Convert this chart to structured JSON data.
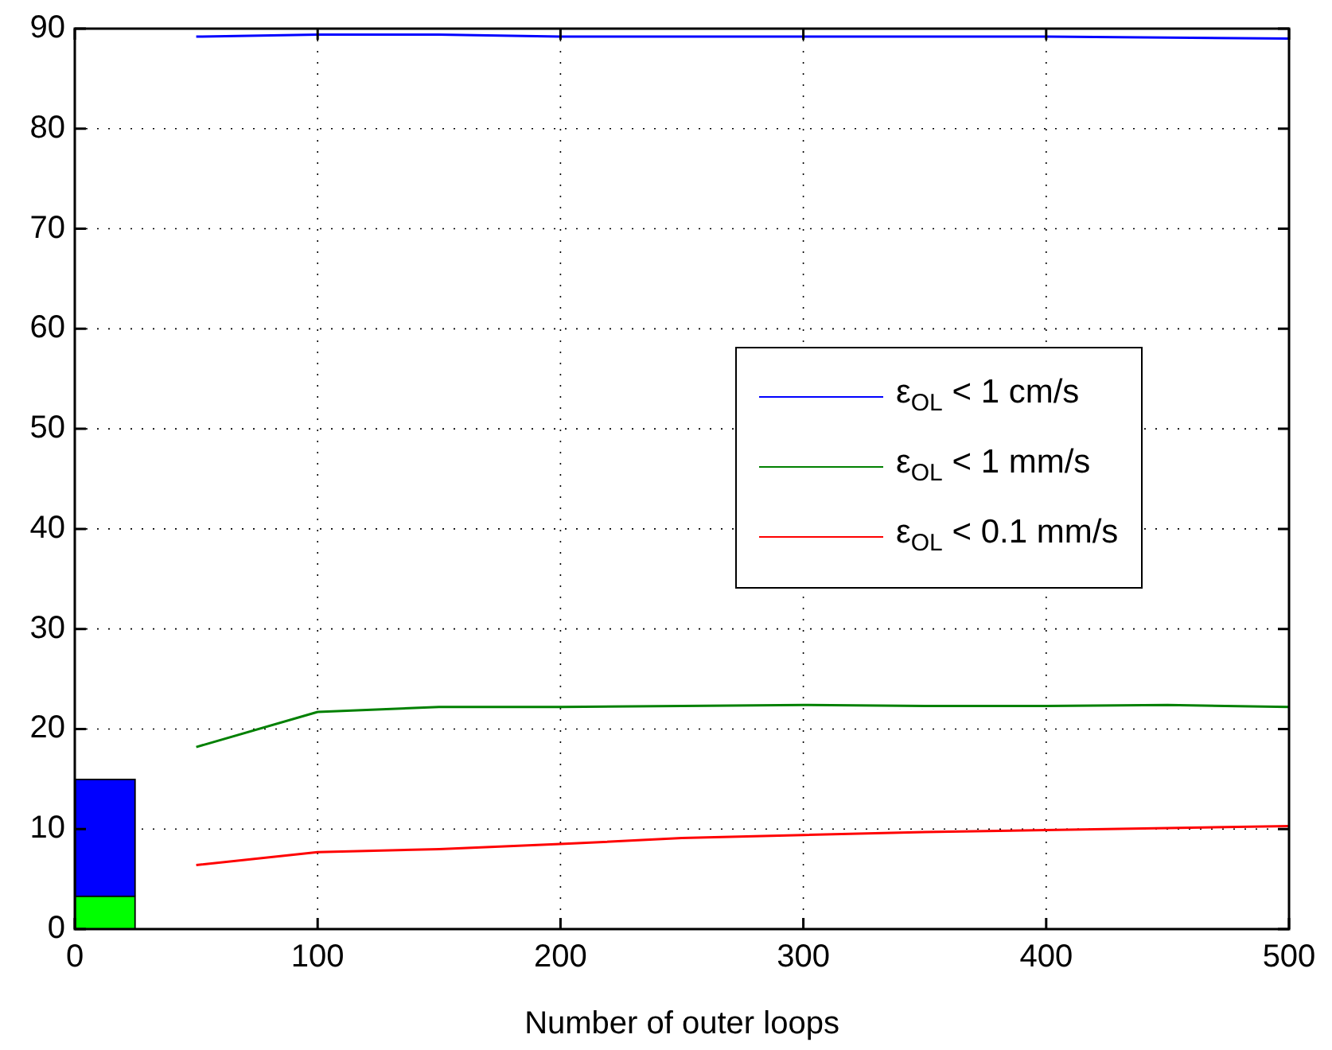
{
  "chart_data": {
    "type": "line",
    "stacked": true,
    "xlabel": "Number of outer loops",
    "xlim": [
      0,
      500
    ],
    "xticks": [
      0,
      100,
      200,
      300,
      400,
      500
    ],
    "ylim": [
      0,
      90
    ],
    "yticks": [
      0,
      10,
      20,
      30,
      40,
      50,
      60,
      70,
      80,
      90
    ],
    "grid": true,
    "legend": "right",
    "series": [
      {
        "name": "ε$_{OL}$ < 1 cm/s",
        "color": "#0000ff",
        "x": [
          50,
          100,
          150,
          200,
          250,
          300,
          350,
          400,
          450,
          500
        ],
        "values": [
          89.2,
          89.4,
          89.4,
          89.2,
          89.2,
          89.2,
          89.2,
          89.2,
          89.1,
          89.0
        ]
      },
      {
        "name": "ε$_{OL}$ < 1 mm/s",
        "color": "#008000",
        "x": [
          50,
          100,
          150,
          200,
          250,
          300,
          350,
          400,
          450,
          500
        ],
        "values": [
          18.2,
          21.7,
          22.2,
          22.2,
          22.3,
          22.4,
          22.3,
          22.3,
          22.4,
          22.2
        ]
      },
      {
        "name": "ε$_{OL}$ < 0.1 mm/s",
        "color": "#ff0000",
        "x": [
          50,
          100,
          150,
          200,
          250,
          300,
          350,
          400,
          450,
          500
        ],
        "values": [
          6.4,
          7.7,
          8.0,
          8.5,
          9.1,
          9.4,
          9.7,
          9.9,
          10.1,
          10.3
        ]
      },
      {
        "type": "bar",
        "color": "#00ff00",
        "x": [
          12.5
        ],
        "values": [
          3.3
        ]
      },
      {
        "type": "bar",
        "color": "#0000ff",
        "x": [
          12.5
        ],
        "values": [
          11.7
        ]
      }
    ]
  }
}
